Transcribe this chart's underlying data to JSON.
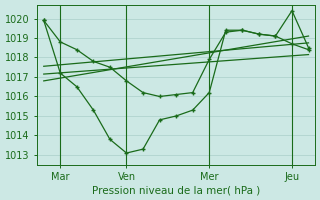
{
  "xlabel": "Pression niveau de la mer( hPa )",
  "bg_color": "#cce8e4",
  "line_color": "#1a6b1a",
  "grid_color": "#aacfca",
  "ylim": [
    1012.5,
    1020.7
  ],
  "xlim": [
    -0.2,
    8.2
  ],
  "xtick_positions": [
    0.5,
    2.5,
    5.0,
    7.5
  ],
  "xtick_labels": [
    "Mar",
    "Ven",
    "Mer",
    "Jeu"
  ],
  "ytick_positions": [
    1013,
    1014,
    1015,
    1016,
    1017,
    1018,
    1019,
    1020
  ],
  "vline_positions": [
    0.5,
    2.5,
    5.0,
    7.5
  ],
  "series1_x": [
    0.0,
    0.5,
    1.0,
    1.5,
    2.0,
    2.5,
    3.0,
    3.5,
    4.0,
    4.5,
    5.0,
    5.5,
    6.0,
    6.5,
    7.0,
    7.5,
    8.0
  ],
  "series1_y": [
    1019.9,
    1018.8,
    1018.4,
    1017.8,
    1017.5,
    1016.8,
    1016.2,
    1016.0,
    1016.1,
    1016.2,
    1017.9,
    1019.3,
    1019.4,
    1019.2,
    1019.1,
    1018.7,
    1018.4
  ],
  "series2_x": [
    0.0,
    0.5,
    1.0,
    1.5,
    2.0,
    2.5,
    3.0,
    3.5,
    4.0,
    4.5,
    5.0,
    5.5,
    6.0,
    6.5,
    7.0,
    7.5,
    8.0
  ],
  "series2_y": [
    1019.9,
    1017.2,
    1016.5,
    1015.3,
    1013.8,
    1013.1,
    1013.3,
    1014.8,
    1015.0,
    1015.3,
    1016.2,
    1019.4,
    1019.4,
    1019.2,
    1019.1,
    1020.4,
    1018.5
  ],
  "trend1_x": [
    0.0,
    8.0
  ],
  "trend1_y": [
    1017.15,
    1018.15
  ],
  "trend2_x": [
    0.0,
    8.0
  ],
  "trend2_y": [
    1017.55,
    1018.75
  ],
  "trend3_x": [
    0.0,
    8.0
  ],
  "trend3_y": [
    1016.8,
    1019.1
  ]
}
